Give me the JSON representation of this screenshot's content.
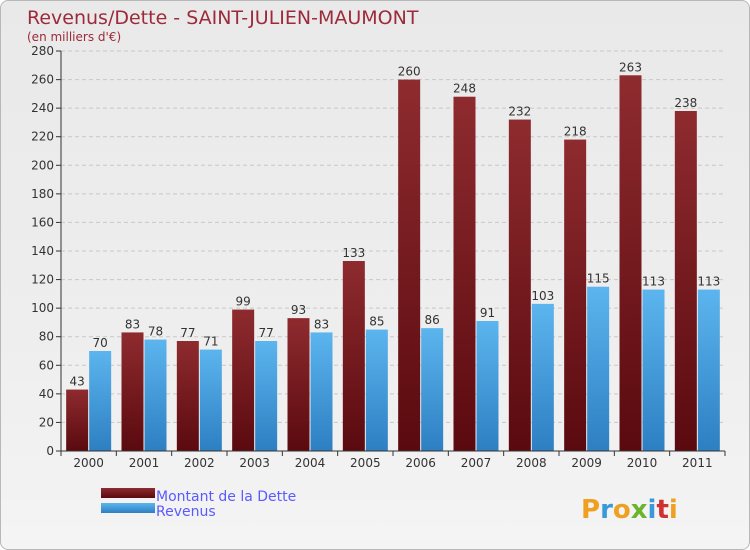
{
  "chart_data": {
    "type": "bar",
    "title": "Revenus/Dette - SAINT-JULIEN-MAUMONT",
    "subtitle": "(en milliers d'€)",
    "categories": [
      "2000",
      "2001",
      "2002",
      "2003",
      "2004",
      "2005",
      "2006",
      "2007",
      "2008",
      "2009",
      "2010",
      "2011"
    ],
    "series": [
      {
        "name": "Montant de la Dette",
        "color": "#7a1a1f",
        "values": [
          43,
          83,
          77,
          99,
          93,
          133,
          260,
          248,
          232,
          218,
          263,
          238
        ]
      },
      {
        "name": "Revenus",
        "color": "#3b97dc",
        "values": [
          70,
          78,
          71,
          77,
          83,
          85,
          86,
          91,
          103,
          115,
          113,
          113
        ]
      }
    ],
    "ylim": [
      0,
      280
    ],
    "ytick_step": 20,
    "grid": true,
    "legend_position": "bottom-left"
  },
  "logo": {
    "letters": [
      "P",
      "r",
      "o",
      "x",
      "i",
      "t",
      "i"
    ],
    "colors": [
      "#f0a020",
      "#3a9ad9",
      "#f0a020",
      "#6bb52c",
      "#3a9ad9",
      "#d03030",
      "#f0a020"
    ]
  }
}
